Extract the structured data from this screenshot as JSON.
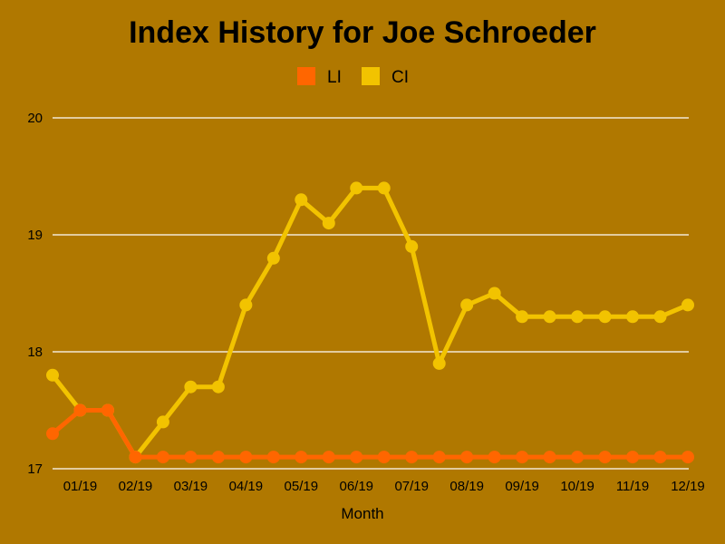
{
  "chart_data": {
    "type": "line",
    "title": "Index History for Joe Schroeder",
    "xlabel": "Month",
    "ylabel": "",
    "ylim": [
      17,
      20
    ],
    "grid": true,
    "legend_position": "top-center",
    "y_ticks": [
      "17",
      "18",
      "19",
      "20"
    ],
    "x_tick_labels": [
      "01/19",
      "02/19",
      "03/19",
      "04/19",
      "05/19",
      "06/19",
      "07/19",
      "08/19",
      "09/19",
      "10/19",
      "11/19",
      "12/19"
    ],
    "series": [
      {
        "name": "LI",
        "color": "#ff6600",
        "values": [
          17.3,
          17.5,
          17.5,
          17.1,
          17.1,
          17.1,
          17.1,
          17.1,
          17.1,
          17.1,
          17.1,
          17.1,
          17.1,
          17.1,
          17.1,
          17.1,
          17.1,
          17.1,
          17.1,
          17.1,
          17.1,
          17.1,
          17.1,
          17.1
        ]
      },
      {
        "name": "CI",
        "color": "#f2c300",
        "values": [
          17.8,
          17.5,
          17.5,
          17.1,
          17.4,
          17.7,
          17.7,
          18.4,
          18.8,
          19.3,
          19.1,
          19.4,
          19.4,
          18.9,
          17.9,
          18.4,
          18.5,
          18.3,
          18.3,
          18.3,
          18.3,
          18.3,
          18.3,
          18.4
        ]
      }
    ]
  }
}
